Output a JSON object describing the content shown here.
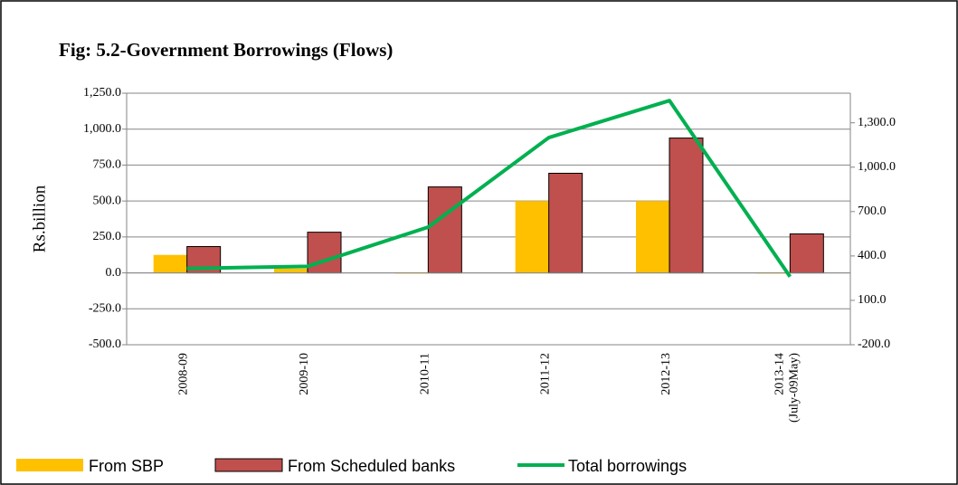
{
  "chart_data": {
    "type": "bar_line",
    "title": "Fig: 5.2-Government Borrowings (Flows)",
    "y_label": "Rs.billion",
    "categories": [
      "2008-09",
      "2009-10",
      "2010-11",
      "2011-12",
      "2012-13",
      "2013-14 (July-09May)"
    ],
    "series": [
      {
        "name": "From SBP",
        "color": "#ffc000",
        "type": "bar",
        "values": [
          125,
          30,
          -5,
          500,
          500,
          -5
        ]
      },
      {
        "name": "From Scheduled banks",
        "color": "#c0504d",
        "type": "bar",
        "values": [
          183,
          283,
          598,
          693,
          938,
          271
        ]
      },
      {
        "name": "Total borrowings",
        "color": "#00b050",
        "type": "line",
        "axis": "y2",
        "values": [
          315,
          330,
          595,
          1200,
          1450,
          260
        ]
      }
    ],
    "ylim": [
      -500,
      1250
    ],
    "yticks": [
      {
        "value": -500,
        "label": "-500.0"
      },
      {
        "value": -250,
        "label": "-250.0"
      },
      {
        "value": 0,
        "label": "0.0"
      },
      {
        "value": 250,
        "label": "250.0"
      },
      {
        "value": 500,
        "label": "500.0"
      },
      {
        "value": 750,
        "label": "750.0"
      },
      {
        "value": 1000,
        "label": "1,000.0"
      },
      {
        "value": 1250,
        "label": "1,250.0"
      }
    ],
    "y2lim": [
      -200,
      1500
    ],
    "y2ticks": [
      {
        "value": -200,
        "label": "-200.0"
      },
      {
        "value": 100,
        "label": "100.0"
      },
      {
        "value": 400,
        "label": "400.0"
      },
      {
        "value": 700,
        "label": "700.0"
      },
      {
        "value": 1000,
        "label": "1,000.0"
      },
      {
        "value": 1300,
        "label": "1,300.0"
      }
    ],
    "grid": true
  }
}
